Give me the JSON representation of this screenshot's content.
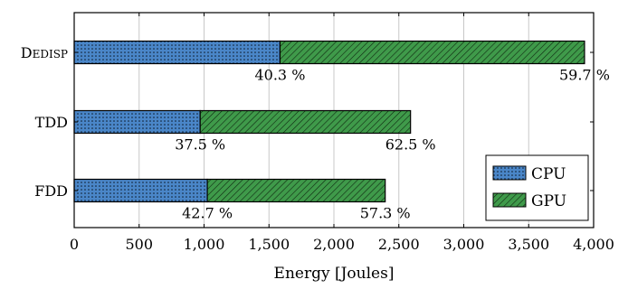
{
  "chart_data": {
    "type": "bar",
    "orientation": "horizontal",
    "stacked": true,
    "categories": [
      "Dedisp",
      "TDD",
      "FDD"
    ],
    "series": [
      {
        "name": "CPU",
        "values": [
          1585,
          970,
          1025
        ],
        "color": "#4a86c8",
        "pattern": "dots"
      },
      {
        "name": "GPU",
        "values": [
          2345,
          1620,
          1370
        ],
        "color": "#3f9a4a",
        "pattern": "diagonal-hatch"
      }
    ],
    "percent_labels": [
      [
        "40.3 %",
        "59.7 %"
      ],
      [
        "37.5 %",
        "62.5 %"
      ],
      [
        "42.7 %",
        "57.3 %"
      ]
    ],
    "xlabel": "Energy [Joules]",
    "ylabel": "",
    "title": "",
    "xlim": [
      0,
      4000
    ],
    "xticks": [
      0,
      500,
      1000,
      1500,
      2000,
      2500,
      3000,
      3500,
      4000
    ],
    "xtick_labels": [
      "0",
      "500",
      "1,000",
      "1,500",
      "2,000",
      "2,500",
      "3,000",
      "3,500",
      "4,000"
    ],
    "grid": "vertical",
    "legend_position": "bottom-right"
  }
}
